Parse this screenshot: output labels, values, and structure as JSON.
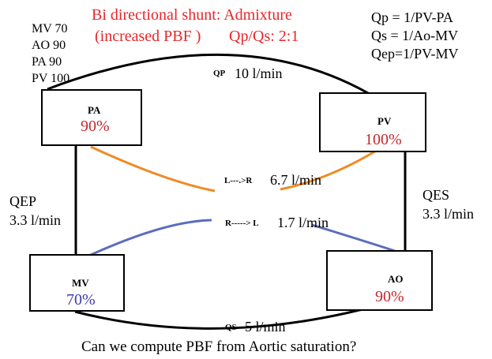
{
  "title": {
    "line1": "Bi directional shunt: Admixture",
    "line2": "(increased PBF )",
    "ratio": "Qp/Qs: 2:1"
  },
  "saturation_legend": [
    "MV 70",
    "AO 90",
    "PA 90",
    "PV 100"
  ],
  "formulas": [
    "Qp = 1/PV-PA",
    "Qs = 1/Ao-MV",
    "Qep=1/PV-MV"
  ],
  "nodes": {
    "pa": {
      "label": "PA",
      "saturation": "90%"
    },
    "pv": {
      "label": "PV",
      "saturation": "100%"
    },
    "mv": {
      "label": "MV",
      "saturation": "70%"
    },
    "ao": {
      "label": "AO",
      "saturation": "90%"
    }
  },
  "flows": {
    "qp": {
      "name": "QP",
      "value": "10 l/min"
    },
    "qs": {
      "name": "QS",
      "value": "5 l/min"
    },
    "qep": {
      "name": "QEP",
      "value": "3.3 l/min"
    },
    "qes": {
      "name": "QES",
      "value": "3.3 l/min"
    },
    "l_to_r": {
      "label": "L---.>R",
      "value": "6.7 l/min"
    },
    "r_to_l": {
      "label": "R-----> L",
      "value": "1.7 l/min"
    }
  },
  "colors": {
    "title": "#e8262a",
    "saturation_red": "#c0282e",
    "saturation_blue": "#3a3aa8",
    "left_to_right_shunt": "#f08a24",
    "right_to_left_shunt": "#5a6cc0"
  },
  "question": "Can we compute PBF from Aortic saturation?"
}
